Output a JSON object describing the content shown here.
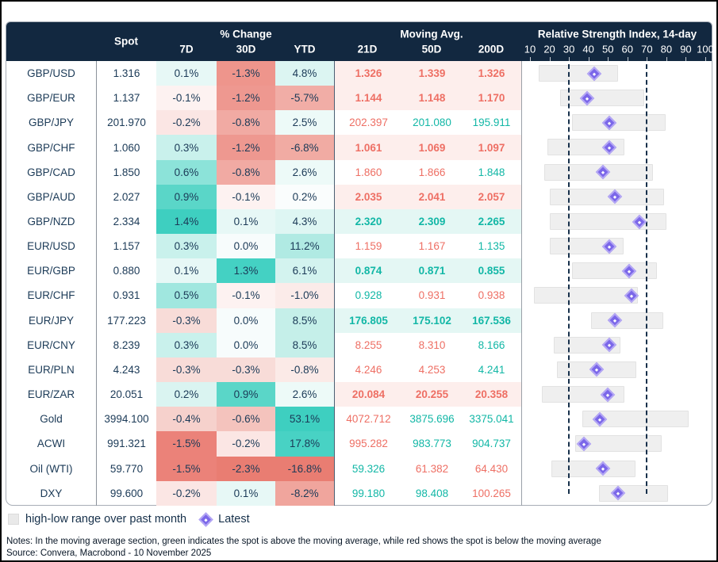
{
  "table": {
    "header": {
      "spot": "Spot",
      "pct_change": "% Change",
      "pct_cols": [
        "7D",
        "30D",
        "YTD"
      ],
      "moving_avg": "Moving Avg.",
      "ma_cols": [
        "21D",
        "50D",
        "200D"
      ],
      "rsi_title": "Relative Strength Index, 14-day",
      "rsi_ticks": [
        10,
        20,
        30,
        40,
        50,
        60,
        70,
        80,
        90,
        100
      ]
    },
    "rows": [
      {
        "chg_bg": [
          "#e7f8f6",
          "#ee958c",
          "#dcf5f2"
        ],
        "ma_dir": [
          "below",
          "below",
          "below"
        ]
      },
      {
        "chg_bg": [
          "#fdf2f1",
          "#ee9890",
          "#f1ada6"
        ],
        "ma_dir": [
          "below",
          "below",
          "below"
        ]
      },
      {
        "chg_bg": [
          "#fbe6e4",
          "#f1aaa3",
          "#edfaf8"
        ],
        "ma_dir": [
          "below",
          "above",
          "above"
        ]
      },
      {
        "chg_bg": [
          "#c9f1ec",
          "#ee9890",
          "#f1aba3"
        ],
        "ma_dir": [
          "below",
          "below",
          "below"
        ]
      },
      {
        "chg_bg": [
          "#8ce3d9",
          "#f1aaa3",
          "#edfaf8"
        ],
        "ma_dir": [
          "below",
          "below",
          "above"
        ]
      },
      {
        "chg_bg": [
          "#5ad6c8",
          "#fdf2f1",
          "#fafdfd"
        ],
        "ma_dir": [
          "below",
          "below",
          "below"
        ]
      },
      {
        "chg_bg": [
          "#3ecfc0",
          "#e7f8f6",
          "#def6f3"
        ],
        "ma_dir": [
          "above",
          "above",
          "above"
        ]
      },
      {
        "chg_bg": [
          "#c9f1ec",
          "#f7fcfc",
          "#b0eae3"
        ],
        "ma_dir": [
          "below",
          "below",
          "above"
        ]
      },
      {
        "chg_bg": [
          "#e7f8f6",
          "#44d1c3",
          "#d3f3ef"
        ],
        "ma_dir": [
          "above",
          "above",
          "above"
        ]
      },
      {
        "chg_bg": [
          "#a0e7df",
          "#fdf2f1",
          "#fbebe9"
        ],
        "ma_dir": [
          "above",
          "below",
          "below"
        ]
      },
      {
        "chg_bg": [
          "#f8dcd8",
          "#f7fcfc",
          "#c5efe9"
        ],
        "ma_dir": [
          "above",
          "above",
          "above"
        ]
      },
      {
        "chg_bg": [
          "#c9f1ec",
          "#f7fcfc",
          "#c5efe9"
        ],
        "ma_dir": [
          "below",
          "below",
          "above"
        ]
      },
      {
        "chg_bg": [
          "#f8dcd8",
          "#f8dcd8",
          "#fbeae7"
        ],
        "ma_dir": [
          "below",
          "below",
          "above"
        ]
      },
      {
        "chg_bg": [
          "#daf4f1",
          "#5ad6c8",
          "#edfaf8"
        ],
        "ma_dir": [
          "below",
          "below",
          "below"
        ]
      },
      {
        "chg_bg": [
          "#f6d1cc",
          "#f4c3bd",
          "#3ecfc0"
        ],
        "ma_dir": [
          "below",
          "above",
          "above"
        ]
      },
      {
        "chg_bg": [
          "#eb8279",
          "#fbe6e4",
          "#48d2c4"
        ],
        "ma_dir": [
          "below",
          "above",
          "above"
        ]
      },
      {
        "chg_bg": [
          "#eb8279",
          "#e97d72",
          "#e97d72"
        ],
        "ma_dir": [
          "above",
          "below",
          "below"
        ]
      },
      {
        "chg_bg": [
          "#fbe6e4",
          "#e7f8f6",
          "#f0a59d"
        ],
        "ma_dir": [
          "above",
          "above",
          "below"
        ]
      }
    ]
  },
  "chart_data": {
    "type": "table",
    "title": "FX spot, % change, moving averages and RSI",
    "columns": [
      "Spot",
      "7D",
      "30D",
      "YTD",
      "21D",
      "50D",
      "200D",
      "RSI low",
      "RSI high",
      "RSI latest"
    ],
    "rsi_axis": {
      "min": 10,
      "max": 100,
      "ticks": [
        10,
        20,
        30,
        40,
        50,
        60,
        70,
        80,
        90,
        100
      ],
      "oversold_line": 30,
      "overbought_line": 70
    },
    "rows": [
      {
        "label": "GBP/USD",
        "spot": 1.316,
        "chg_7d": 0.1,
        "chg_30d": -1.3,
        "chg_ytd": 4.8,
        "ma_21d": 1.326,
        "ma_50d": 1.339,
        "ma_200d": 1.326,
        "rsi_low": 14.5,
        "rsi_high": 55,
        "rsi_latest": 43
      },
      {
        "label": "GBP/EUR",
        "spot": 1.137,
        "chg_7d": -0.1,
        "chg_30d": -1.2,
        "chg_ytd": -5.7,
        "ma_21d": 1.144,
        "ma_50d": 1.148,
        "ma_200d": 1.17,
        "rsi_low": 25.5,
        "rsi_high": 68.5,
        "rsi_latest": 39.5
      },
      {
        "label": "GBP/JPY",
        "spot": 201.97,
        "chg_7d": -0.2,
        "chg_30d": -0.8,
        "chg_ytd": 2.5,
        "ma_21d": 202.397,
        "ma_50d": 201.08,
        "ma_200d": 195.911,
        "rsi_low": 31.5,
        "rsi_high": 79.5,
        "rsi_latest": 50.5
      },
      {
        "label": "GBP/CHF",
        "spot": 1.06,
        "chg_7d": 0.3,
        "chg_30d": -1.2,
        "chg_ytd": -6.8,
        "ma_21d": 1.061,
        "ma_50d": 1.069,
        "ma_200d": 1.097,
        "rsi_low": 19,
        "rsi_high": 58.5,
        "rsi_latest": 50.5
      },
      {
        "label": "GBP/CAD",
        "spot": 1.85,
        "chg_7d": 0.6,
        "chg_30d": -0.8,
        "chg_ytd": 2.6,
        "ma_21d": 1.86,
        "ma_50d": 1.866,
        "ma_200d": 1.848,
        "rsi_low": 17.5,
        "rsi_high": 73,
        "rsi_latest": 47.5
      },
      {
        "label": "GBP/AUD",
        "spot": 2.027,
        "chg_7d": 0.9,
        "chg_30d": -0.1,
        "chg_ytd": 0.2,
        "ma_21d": 2.035,
        "ma_50d": 2.041,
        "ma_200d": 2.057,
        "rsi_low": 20,
        "rsi_high": 79,
        "rsi_latest": 53.5
      },
      {
        "label": "GBP/NZD",
        "spot": 2.334,
        "chg_7d": 1.4,
        "chg_30d": 0.1,
        "chg_ytd": 4.3,
        "ma_21d": 2.32,
        "ma_50d": 2.309,
        "ma_200d": 2.265,
        "rsi_low": 20,
        "rsi_high": 80,
        "rsi_latest": 66
      },
      {
        "label": "EUR/USD",
        "spot": 1.157,
        "chg_7d": 0.3,
        "chg_30d": 0.0,
        "chg_ytd": 11.2,
        "ma_21d": 1.159,
        "ma_50d": 1.167,
        "ma_200d": 1.135,
        "rsi_low": 20,
        "rsi_high": 58,
        "rsi_latest": 50.5
      },
      {
        "label": "EUR/GBP",
        "spot": 0.88,
        "chg_7d": 0.1,
        "chg_30d": 1.3,
        "chg_ytd": 6.1,
        "ma_21d": 0.874,
        "ma_50d": 0.871,
        "ma_200d": 0.855,
        "rsi_low": 31.5,
        "rsi_high": 75,
        "rsi_latest": 61
      },
      {
        "label": "EUR/CHF",
        "spot": 0.931,
        "chg_7d": 0.5,
        "chg_30d": -0.1,
        "chg_ytd": -1.0,
        "ma_21d": 0.928,
        "ma_50d": 0.931,
        "ma_200d": 0.938,
        "rsi_low": 12,
        "rsi_high": 65.5,
        "rsi_latest": 62
      },
      {
        "label": "EUR/JPY",
        "spot": 177.223,
        "chg_7d": -0.3,
        "chg_30d": 0.0,
        "chg_ytd": 8.5,
        "ma_21d": 176.805,
        "ma_50d": 175.102,
        "ma_200d": 167.536,
        "rsi_low": 41.5,
        "rsi_high": 78.5,
        "rsi_latest": 53.5
      },
      {
        "label": "EUR/CNY",
        "spot": 8.239,
        "chg_7d": 0.3,
        "chg_30d": 0.0,
        "chg_ytd": 8.5,
        "ma_21d": 8.255,
        "ma_50d": 8.31,
        "ma_200d": 8.166,
        "rsi_low": 22,
        "rsi_high": 56.5,
        "rsi_latest": 50.5
      },
      {
        "label": "EUR/PLN",
        "spot": 4.243,
        "chg_7d": -0.3,
        "chg_30d": -0.3,
        "chg_ytd": -0.8,
        "ma_21d": 4.246,
        "ma_50d": 4.253,
        "ma_200d": 4.241,
        "rsi_low": 24,
        "rsi_high": 64.5,
        "rsi_latest": 44
      },
      {
        "label": "EUR/ZAR",
        "spot": 20.051,
        "chg_7d": 0.2,
        "chg_30d": 0.9,
        "chg_ytd": 2.6,
        "ma_21d": 20.084,
        "ma_50d": 20.255,
        "ma_200d": 20.358,
        "rsi_low": 16,
        "rsi_high": 58.5,
        "rsi_latest": 50
      },
      {
        "label": "Gold",
        "spot": 3994.1,
        "chg_7d": -0.4,
        "chg_30d": -0.6,
        "chg_ytd": 53.1,
        "ma_21d": 4072.712,
        "ma_50d": 3875.696,
        "ma_200d": 3375.041,
        "rsi_low": 37,
        "rsi_high": 91.5,
        "rsi_latest": 46
      },
      {
        "label": "ACWI",
        "spot": 991.321,
        "chg_7d": -1.5,
        "chg_30d": -0.2,
        "chg_ytd": 17.8,
        "ma_21d": 995.282,
        "ma_50d": 983.773,
        "ma_200d": 904.737,
        "rsi_low": 33,
        "rsi_high": 77.5,
        "rsi_latest": 37.5
      },
      {
        "label": "Oil (WTI)",
        "spot": 59.77,
        "chg_7d": -1.5,
        "chg_30d": -2.3,
        "chg_ytd": -16.8,
        "ma_21d": 59.326,
        "ma_50d": 61.382,
        "ma_200d": 64.43,
        "rsi_low": 21,
        "rsi_high": 64,
        "rsi_latest": 47.5
      },
      {
        "label": "DXY",
        "spot": 99.6,
        "chg_7d": -0.2,
        "chg_30d": 0.1,
        "chg_ytd": -8.2,
        "ma_21d": 99.18,
        "ma_50d": 98.408,
        "ma_200d": 100.265,
        "rsi_low": 45.5,
        "rsi_high": 81,
        "rsi_latest": 55
      }
    ]
  },
  "colors": {
    "header_bg": "#122840",
    "navy": "#1b3a57",
    "ma_above": "#12b7a6",
    "ma_below": "#ee6f64",
    "ma_bg_above": "#e4f7f4",
    "ma_bg_below": "#fdeeec",
    "range_bar": "#efefef",
    "latest_diamond": "#7b67e9",
    "rsi_dashed_line": "#17304b"
  },
  "legend": {
    "range_label": "high-low range over past month",
    "latest_label": "Latest"
  },
  "notes": "Notes: In the moving average section, green indicates the spot is above the moving average, while red shows the spot is below the moving average",
  "source": "Source: Convera, Macrobond - 10 November 2025"
}
